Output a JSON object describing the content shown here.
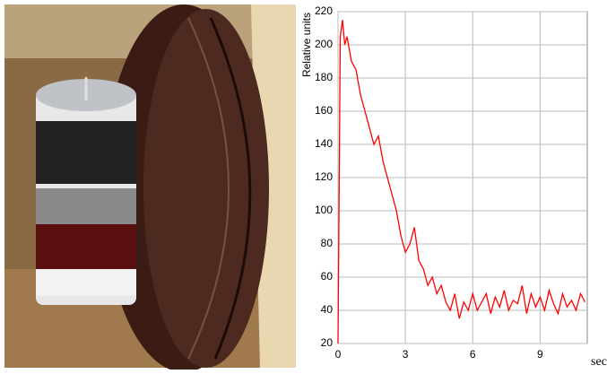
{
  "chart_data": {
    "type": "line",
    "y_label": "Relative units",
    "x_label": "sec",
    "xlim": [
      0,
      11.1
    ],
    "xticks": [
      0,
      3,
      6,
      9
    ],
    "ylim": [
      20,
      220
    ],
    "yticks": [
      20,
      40,
      60,
      80,
      100,
      120,
      140,
      160,
      180,
      200,
      220
    ],
    "grid": true,
    "series": [
      {
        "color": "#ff0000",
        "x": [
          0,
          0.1,
          0.2,
          0.3,
          0.4,
          0.6,
          0.8,
          1.0,
          1.2,
          1.4,
          1.6,
          1.8,
          2.0,
          2.2,
          2.4,
          2.6,
          2.8,
          3.0,
          3.2,
          3.4,
          3.6,
          3.8,
          4.0,
          4.2,
          4.4,
          4.6,
          4.8,
          5.0,
          5.2,
          5.4,
          5.6,
          5.8,
          6.0,
          6.2,
          6.4,
          6.6,
          6.8,
          7.0,
          7.2,
          7.4,
          7.6,
          7.8,
          8.0,
          8.2,
          8.4,
          8.6,
          8.8,
          9.0,
          9.2,
          9.4,
          9.6,
          9.8,
          10.0,
          10.2,
          10.4,
          10.6,
          10.8,
          11.0
        ],
        "values": [
          20,
          205,
          215,
          200,
          205,
          190,
          185,
          170,
          160,
          150,
          140,
          145,
          130,
          120,
          110,
          100,
          85,
          75,
          80,
          90,
          70,
          65,
          55,
          60,
          50,
          55,
          45,
          40,
          50,
          35,
          45,
          40,
          50,
          40,
          45,
          50,
          38,
          48,
          42,
          52,
          40,
          46,
          44,
          55,
          38,
          50,
          42,
          48,
          40,
          52,
          44,
          38,
          50,
          42,
          46,
          40,
          50,
          45
        ]
      }
    ]
  }
}
